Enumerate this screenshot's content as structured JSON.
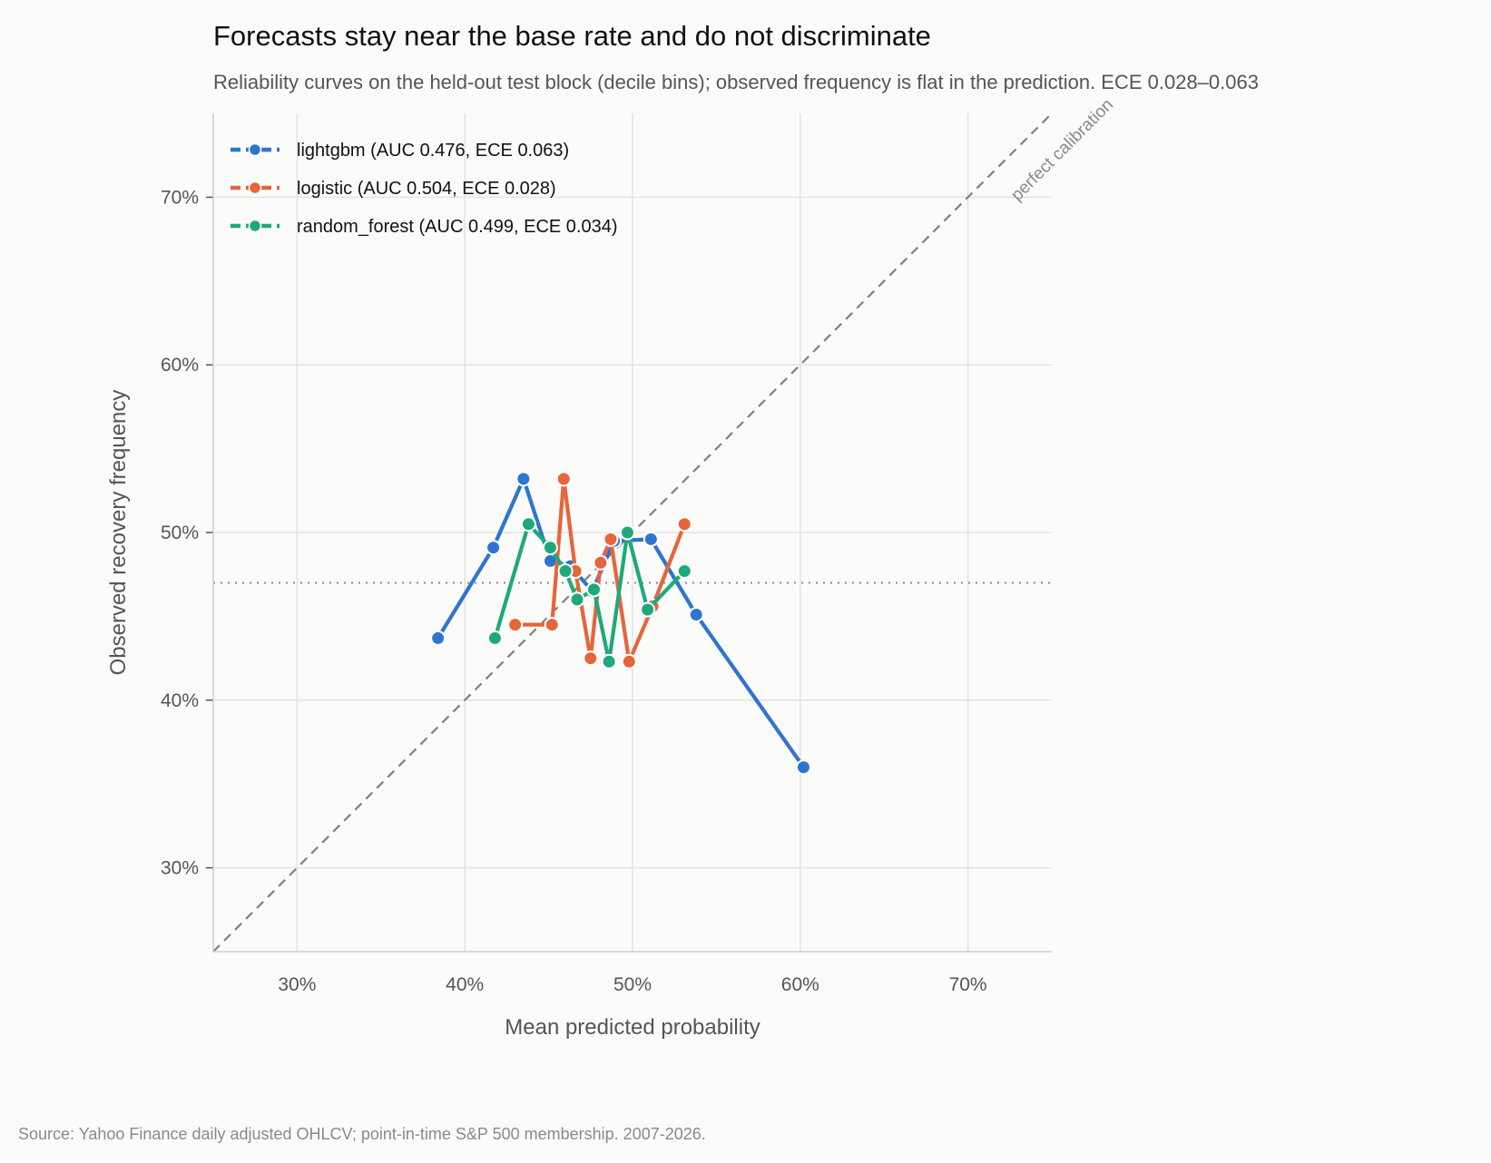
{
  "title": "Forecasts stay near the base rate and do not discriminate",
  "subtitle": "Reliability curves on the held-out test block (decile bins); observed frequency is flat in the prediction. ECE 0.028–0.063",
  "source": "Source: Yahoo Finance daily adjusted OHLCV; point-in-time S&P 500 membership. 2007-2026.",
  "chart_data": {
    "type": "line",
    "title": "Forecasts stay near the base rate and do not discriminate",
    "xlabel": "Mean predicted probability",
    "ylabel": "Observed recovery frequency",
    "xlim": [
      0.25,
      0.75
    ],
    "ylim": [
      0.25,
      0.75
    ],
    "xticks": [
      0.3,
      0.4,
      0.5,
      0.6,
      0.7
    ],
    "yticks": [
      0.3,
      0.4,
      0.5,
      0.6,
      0.7
    ],
    "xtick_labels": [
      "30%",
      "40%",
      "50%",
      "60%",
      "70%"
    ],
    "ytick_labels": [
      "30%",
      "40%",
      "50%",
      "60%",
      "70%"
    ],
    "grid": true,
    "legend_position": "top-left",
    "reference_line": {
      "label": "perfect calibration",
      "from": [
        0.25,
        0.25
      ],
      "to": [
        0.75,
        0.75
      ],
      "color": "#808080"
    },
    "base_rate": 0.47,
    "series": [
      {
        "name": "lightgbm (AUC 0.476, ECE 0.063)",
        "color": "#2f74d0",
        "x": [
          0.384,
          0.417,
          0.435,
          0.451,
          0.463,
          0.476,
          0.489,
          0.511,
          0.538,
          0.602
        ],
        "y": [
          0.437,
          0.491,
          0.532,
          0.483,
          0.48,
          0.465,
          0.495,
          0.496,
          0.451,
          0.36
        ]
      },
      {
        "name": "logistic (AUC 0.504, ECE 0.028)",
        "color": "#e5663a",
        "x": [
          0.43,
          0.452,
          0.459,
          0.466,
          0.475,
          0.481,
          0.487,
          0.498,
          0.512,
          0.531
        ],
        "y": [
          0.445,
          0.445,
          0.532,
          0.477,
          0.425,
          0.482,
          0.496,
          0.423,
          0.456,
          0.505
        ]
      },
      {
        "name": "random_forest (AUC 0.499, ECE 0.034)",
        "color": "#1fa97a",
        "x": [
          0.418,
          0.438,
          0.451,
          0.46,
          0.467,
          0.477,
          0.486,
          0.497,
          0.509,
          0.531
        ],
        "y": [
          0.437,
          0.505,
          0.491,
          0.477,
          0.46,
          0.466,
          0.423,
          0.5,
          0.454,
          0.477
        ]
      }
    ]
  }
}
